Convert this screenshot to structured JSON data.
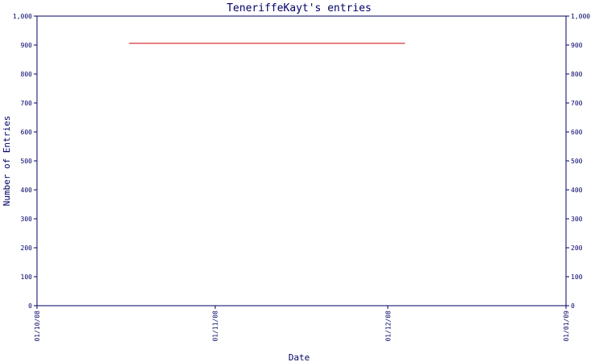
{
  "chart_data": {
    "type": "line",
    "title": "TeneriffeKayt's entries",
    "xlabel": "Date",
    "ylabel": "Number of Entries",
    "ylim": [
      0,
      1000
    ],
    "yticks": [
      0,
      100,
      200,
      300,
      400,
      500,
      600,
      700,
      800,
      900,
      1000
    ],
    "ytick_labels": [
      "0",
      "100",
      "200",
      "300",
      "400",
      "500",
      "600",
      "700",
      "800",
      "900",
      "1,000"
    ],
    "xlim": [
      "2008-10-01",
      "2009-01-01"
    ],
    "xticks": [
      "2008-10-01",
      "2008-11-01",
      "2008-12-01",
      "2009-01-01"
    ],
    "xtick_labels": [
      "01/10/08",
      "01/11/08",
      "01/12/08",
      "01/01/09"
    ],
    "series": [
      {
        "x": [
          "2008-10-17",
          "2008-12-04"
        ],
        "y": [
          906,
          906
        ]
      }
    ],
    "colors": {
      "axis": "#000066",
      "text": "#000066",
      "line": "#cc0000"
    },
    "grid": false,
    "right_axis_mirrored": true
  }
}
